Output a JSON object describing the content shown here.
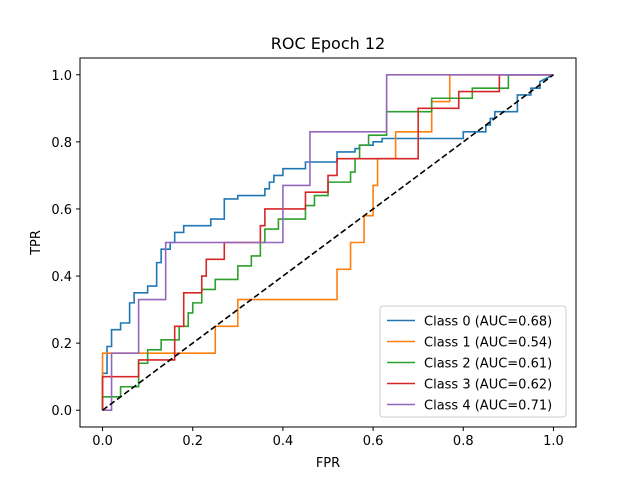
{
  "chart_data": {
    "type": "line",
    "title": "ROC Epoch 12",
    "xlabel": "FPR",
    "ylabel": "TPR",
    "xlim": [
      -0.05,
      1.05
    ],
    "ylim": [
      -0.05,
      1.05
    ],
    "xticks": [
      0.0,
      0.2,
      0.4,
      0.6,
      0.8,
      1.0
    ],
    "yticks": [
      0.0,
      0.2,
      0.4,
      0.6,
      0.8,
      1.0
    ],
    "xtick_labels": [
      "0.0",
      "0.2",
      "0.4",
      "0.6",
      "0.8",
      "1.0"
    ],
    "ytick_labels": [
      "0.0",
      "0.2",
      "0.4",
      "0.6",
      "0.8",
      "1.0"
    ],
    "grid": false,
    "legend_position": "lower right",
    "step": true,
    "series": [
      {
        "name": "Class 0 (AUC=0.68)",
        "color": "#1f77b4",
        "x": [
          0,
          0,
          0.01,
          0.01,
          0.02,
          0.02,
          0.04,
          0.04,
          0.06,
          0.06,
          0.07,
          0.07,
          0.09,
          0.09,
          0.1,
          0.1,
          0.12,
          0.12,
          0.13,
          0.13,
          0.15,
          0.15,
          0.16,
          0.16,
          0.18,
          0.18,
          0.24,
          0.24,
          0.27,
          0.27,
          0.3,
          0.3,
          0.36,
          0.36,
          0.37,
          0.37,
          0.38,
          0.38,
          0.4,
          0.4,
          0.45,
          0.45,
          0.48,
          0.48,
          0.52,
          0.52,
          0.56,
          0.56,
          0.57,
          0.57,
          0.58,
          0.58,
          0.6,
          0.6,
          0.62,
          0.62,
          0.65,
          0.65,
          0.7,
          0.7,
          0.8,
          0.8,
          0.85,
          0.85,
          0.86,
          0.86,
          0.87,
          0.87,
          0.9,
          0.9,
          0.92,
          0.92,
          0.95,
          0.95,
          0.97,
          0.97,
          1.0
        ],
        "y": [
          0,
          0.11,
          0.11,
          0.19,
          0.19,
          0.24,
          0.24,
          0.26,
          0.26,
          0.32,
          0.32,
          0.35,
          0.35,
          0.35,
          0.35,
          0.37,
          0.37,
          0.44,
          0.44,
          0.48,
          0.48,
          0.5,
          0.5,
          0.53,
          0.53,
          0.55,
          0.55,
          0.57,
          0.57,
          0.63,
          0.63,
          0.64,
          0.64,
          0.66,
          0.66,
          0.68,
          0.68,
          0.7,
          0.7,
          0.72,
          0.72,
          0.74,
          0.74,
          0.74,
          0.74,
          0.77,
          0.77,
          0.78,
          0.78,
          0.79,
          0.79,
          0.79,
          0.79,
          0.8,
          0.8,
          0.81,
          0.81,
          0.81,
          0.81,
          0.81,
          0.81,
          0.83,
          0.83,
          0.85,
          0.85,
          0.87,
          0.87,
          0.89,
          0.89,
          0.89,
          0.89,
          0.94,
          0.94,
          0.96,
          0.96,
          0.98,
          1.0
        ]
      },
      {
        "name": "Class 1 (AUC=0.54)",
        "color": "#ff7f0e",
        "x": [
          0,
          0,
          0.25,
          0.25,
          0.3,
          0.3,
          0.52,
          0.52,
          0.55,
          0.55,
          0.58,
          0.58,
          0.6,
          0.6,
          0.61,
          0.61,
          0.65,
          0.65,
          0.67,
          0.67,
          0.73,
          0.73,
          0.77,
          0.77,
          1.0
        ],
        "y": [
          0,
          0.17,
          0.17,
          0.25,
          0.25,
          0.33,
          0.33,
          0.42,
          0.42,
          0.5,
          0.5,
          0.58,
          0.58,
          0.67,
          0.67,
          0.75,
          0.75,
          0.83,
          0.83,
          0.83,
          0.83,
          0.92,
          0.92,
          1.0,
          1.0
        ]
      },
      {
        "name": "Class 2 (AUC=0.61)",
        "color": "#2ca02c",
        "x": [
          0,
          0,
          0.02,
          0.02,
          0.04,
          0.04,
          0.06,
          0.06,
          0.08,
          0.08,
          0.1,
          0.1,
          0.13,
          0.13,
          0.17,
          0.17,
          0.19,
          0.19,
          0.2,
          0.2,
          0.22,
          0.22,
          0.25,
          0.25,
          0.3,
          0.3,
          0.33,
          0.33,
          0.35,
          0.35,
          0.36,
          0.36,
          0.39,
          0.39,
          0.45,
          0.45,
          0.47,
          0.47,
          0.5,
          0.5,
          0.55,
          0.55,
          0.56,
          0.56,
          0.57,
          0.57,
          0.59,
          0.59,
          0.63,
          0.63,
          0.7,
          0.7,
          0.73,
          0.73,
          0.76,
          0.76,
          0.82,
          0.82,
          0.86,
          0.86,
          0.9,
          0.9,
          1.0
        ],
        "y": [
          0,
          0.04,
          0.04,
          0.04,
          0.04,
          0.07,
          0.07,
          0.07,
          0.07,
          0.14,
          0.14,
          0.18,
          0.18,
          0.21,
          0.21,
          0.25,
          0.25,
          0.29,
          0.29,
          0.32,
          0.32,
          0.36,
          0.36,
          0.39,
          0.39,
          0.43,
          0.43,
          0.46,
          0.46,
          0.5,
          0.5,
          0.54,
          0.54,
          0.57,
          0.57,
          0.61,
          0.61,
          0.64,
          0.64,
          0.68,
          0.68,
          0.71,
          0.71,
          0.75,
          0.75,
          0.79,
          0.79,
          0.82,
          0.82,
          0.89,
          0.89,
          0.89,
          0.89,
          0.93,
          0.93,
          0.93,
          0.93,
          0.96,
          0.96,
          0.96,
          0.96,
          1.0,
          1.0
        ]
      },
      {
        "name": "Class 3 (AUC=0.62)",
        "color": "#d62728",
        "x": [
          0,
          0,
          0.08,
          0.08,
          0.16,
          0.16,
          0.18,
          0.18,
          0.22,
          0.22,
          0.23,
          0.23,
          0.27,
          0.27,
          0.35,
          0.35,
          0.36,
          0.36,
          0.45,
          0.45,
          0.5,
          0.5,
          0.52,
          0.52,
          0.55,
          0.55,
          0.57,
          0.57,
          0.7,
          0.7,
          0.73,
          0.73,
          0.79,
          0.79,
          0.83,
          0.83,
          0.88,
          0.88,
          1.0
        ],
        "y": [
          0,
          0.1,
          0.1,
          0.15,
          0.15,
          0.25,
          0.25,
          0.35,
          0.35,
          0.4,
          0.4,
          0.45,
          0.45,
          0.5,
          0.5,
          0.55,
          0.55,
          0.6,
          0.6,
          0.65,
          0.65,
          0.7,
          0.7,
          0.75,
          0.75,
          0.75,
          0.75,
          0.75,
          0.75,
          0.9,
          0.9,
          0.9,
          0.9,
          0.95,
          0.95,
          0.95,
          0.95,
          1.0,
          1.0
        ]
      },
      {
        "name": "Class 4 (AUC=0.71)",
        "color": "#9467bd",
        "x": [
          0,
          0.02,
          0.02,
          0.08,
          0.08,
          0.14,
          0.14,
          0.4,
          0.4,
          0.46,
          0.46,
          0.63,
          0.63,
          1.0
        ],
        "y": [
          0,
          0,
          0.17,
          0.17,
          0.33,
          0.33,
          0.5,
          0.5,
          0.67,
          0.67,
          0.83,
          0.83,
          1.0,
          1.0
        ]
      },
      {
        "name": "",
        "color": "#000000",
        "dashed": true,
        "x": [
          0,
          1
        ],
        "y": [
          0,
          1
        ]
      }
    ]
  }
}
